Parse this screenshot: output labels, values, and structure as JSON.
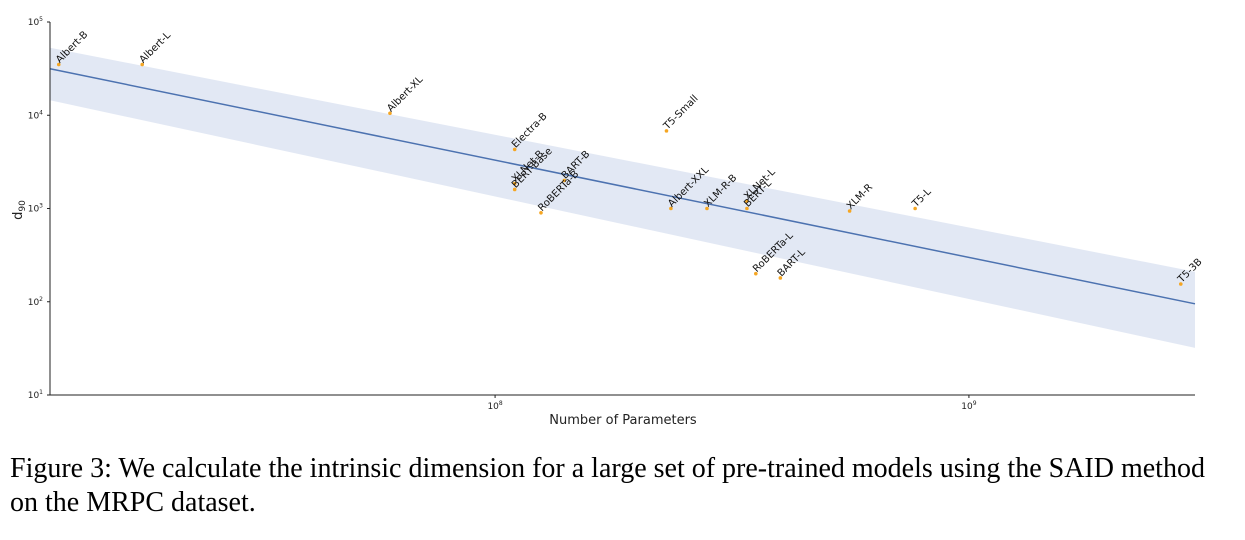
{
  "chart_data": {
    "type": "scatter",
    "x_scale": "log",
    "y_scale": "log",
    "xlim": [
      11500000,
      3000000000
    ],
    "ylim": [
      10,
      100000
    ],
    "xlabel": "Number of Parameters",
    "ylabel": "d",
    "ylabel_subscript": "90",
    "x_ticks": [
      {
        "value": 100000000,
        "base": "10",
        "exp": "8"
      },
      {
        "value": 1000000000,
        "base": "10",
        "exp": "9"
      }
    ],
    "y_ticks": [
      {
        "value": 10,
        "base": "10",
        "exp": "1"
      },
      {
        "value": 100,
        "base": "10",
        "exp": "2"
      },
      {
        "value": 1000,
        "base": "10",
        "exp": "3"
      },
      {
        "value": 10000,
        "base": "10",
        "exp": "4"
      },
      {
        "value": 100000,
        "base": "10",
        "exp": "5"
      }
    ],
    "grid": false,
    "point_color": "#f5a623",
    "line_color": "#4c72b0",
    "band_color": "#dde4f2",
    "points": [
      {
        "label": "Albert-B",
        "x": 12000000,
        "y": 35000
      },
      {
        "label": "Albert-L",
        "x": 18000000,
        "y": 35000
      },
      {
        "label": "Albert-XL",
        "x": 60000000,
        "y": 10500
      },
      {
        "label": "Electra-B",
        "x": 110000000,
        "y": 4300
      },
      {
        "label": "T5-Small",
        "x": 230000000,
        "y": 6800
      },
      {
        "label": "XLNet-B",
        "x": 110000000,
        "y": 1850
      },
      {
        "label": "BERT-Base",
        "x": 110000000,
        "y": 1600
      },
      {
        "label": "BART-B",
        "x": 140000000,
        "y": 2000
      },
      {
        "label": "RoBERTa-B",
        "x": 125000000,
        "y": 900
      },
      {
        "label": "Albert-XXL",
        "x": 235000000,
        "y": 1000
      },
      {
        "label": "XLM-R-B",
        "x": 280000000,
        "y": 1000
      },
      {
        "label": "XLNet-L",
        "x": 340000000,
        "y": 1200
      },
      {
        "label": "BERT-L",
        "x": 340000000,
        "y": 1000
      },
      {
        "label": "RoBERTa-L",
        "x": 355000000,
        "y": 200
      },
      {
        "label": "BART-L",
        "x": 400000000,
        "y": 180
      },
      {
        "label": "XLM-R",
        "x": 560000000,
        "y": 940
      },
      {
        "label": "T5-L",
        "x": 770000000,
        "y": 1000
      },
      {
        "label": "T5-3B",
        "x": 2800000000,
        "y": 155
      }
    ],
    "regression": {
      "x": [
        11500000,
        3000000000
      ],
      "y": [
        31500,
        95
      ],
      "ci_upper": [
        53000,
        210
      ],
      "ci_lower": [
        14500,
        32
      ]
    }
  },
  "caption": "Figure 3: We calculate the intrinsic dimension for a large set of pre-trained models using the SAID method on the MRPC dataset."
}
